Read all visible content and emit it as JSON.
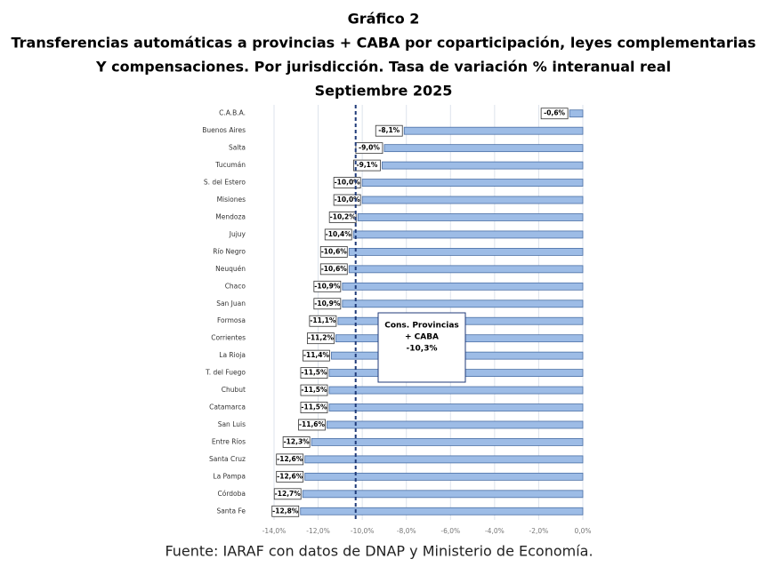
{
  "chart_data": {
    "type": "bar",
    "title": "Gráfico 2",
    "subtitle": [
      "Transferencias automáticas a provincias + CABA por coparticipación, leyes complementarias",
      "Y compensaciones. Por jurisdicción. Tasa de variación % interanual real"
    ],
    "period": "Septiembre 2025",
    "orientation": "horizontal",
    "categories": [
      "C.A.B.A.",
      "Buenos Aires",
      "Salta",
      "Tucumán",
      "S. del Estero",
      "Misiones",
      "Mendoza",
      "Jujuy",
      "Río Negro",
      "Neuquén",
      "Chaco",
      "San Juan",
      "Formosa",
      "Corrientes",
      "La Rioja",
      "T. del Fuego",
      "Chubut",
      "Catamarca",
      "San Luis",
      "Entre Ríos",
      "Santa Cruz",
      "La Pampa",
      "Córdoba",
      "Santa Fe"
    ],
    "values": [
      -0.6,
      -8.1,
      -9.0,
      -9.1,
      -10.0,
      -10.0,
      -10.2,
      -10.4,
      -10.6,
      -10.6,
      -10.9,
      -10.9,
      -11.1,
      -11.2,
      -11.4,
      -11.5,
      -11.5,
      -11.5,
      -11.6,
      -12.3,
      -12.6,
      -12.6,
      -12.7,
      -12.8
    ],
    "value_labels": [
      "-0,6%",
      "-8,1%",
      "-9,0%",
      "-9,1%",
      "-10,0%",
      "-10,0%",
      "-10,2%",
      "-10,4%",
      "-10,6%",
      "-10,6%",
      "-10,9%",
      "-10,9%",
      "-11,1%",
      "-11,2%",
      "-11,4%",
      "-11,5%",
      "-11,5%",
      "-11,5%",
      "-11,6%",
      "-12,3%",
      "-12,6%",
      "-12,6%",
      "-12,7%",
      "-12,8%"
    ],
    "color": "#9dbce6",
    "xlim": [
      -14,
      0
    ],
    "xticks": [
      {
        "value": -14,
        "label": "-14,0%"
      },
      {
        "value": -12,
        "label": "-12,0%"
      },
      {
        "value": -10,
        "label": "-10,0%"
      },
      {
        "value": -8,
        "label": "-8,0%"
      },
      {
        "value": -6,
        "label": "-6,0%"
      },
      {
        "value": -4,
        "label": "-4,0%"
      },
      {
        "value": -2,
        "label": "-2,0%"
      },
      {
        "value": 0,
        "label": "0,0%"
      }
    ],
    "grid": true,
    "reference": {
      "value": -10.3,
      "label_lines": [
        "Cons. Provincias",
        "+ CABA",
        "-10,3%"
      ]
    },
    "source": "Fuente: IARAF con datos de DNAP y Ministerio de Economía."
  }
}
